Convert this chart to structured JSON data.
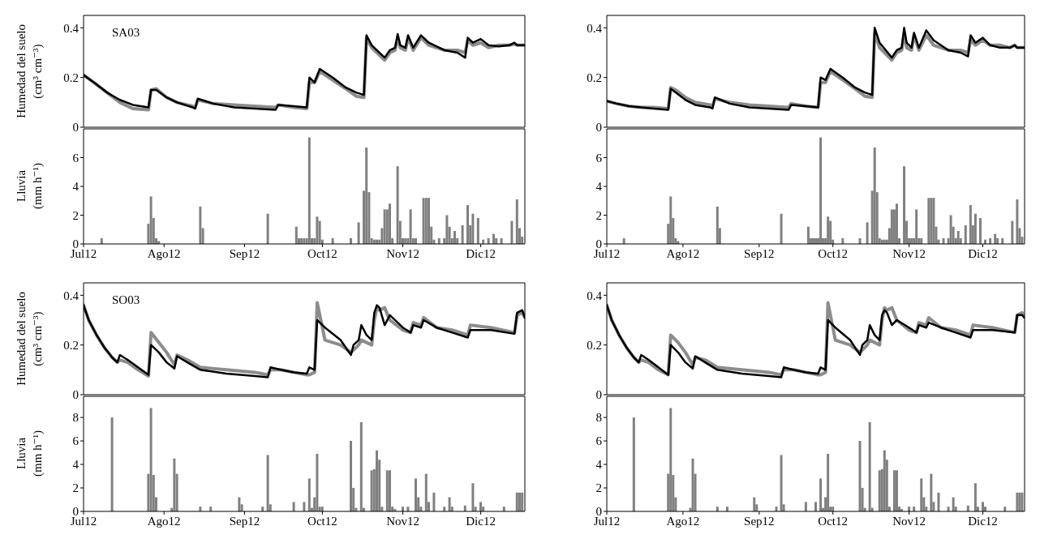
{
  "chart_data": [
    {
      "type": "line",
      "ylabel": "Humedad del suelo (cm³ cm⁻³)",
      "annotations": [
        "SA03"
      ],
      "tick_labels": "y",
      "xlim": [
        "2012-07-01",
        "2012-12-18"
      ],
      "xticks": [
        {
          "value": "2012-07-01",
          "label": null
        },
        {
          "value": "2012-08-01",
          "label": null
        },
        {
          "value": "2012-09-01",
          "label": null
        },
        {
          "value": "2012-10-01",
          "label": null
        },
        {
          "value": "2012-11-01",
          "label": null
        },
        {
          "value": "2012-12-01",
          "label": null
        }
      ],
      "ylim": [
        0,
        0.45
      ],
      "yticks": [
        0,
        0.2,
        0.4
      ],
      "x": [
        "2012-07-01",
        "2012-07-05",
        "2012-07-10",
        "2012-07-15",
        "2012-07-20",
        "2012-07-26",
        "2012-07-27",
        "2012-07-29",
        "2012-08-02",
        "2012-08-06",
        "2012-08-12",
        "2012-08-13",
        "2012-08-14",
        "2012-08-20",
        "2012-08-28",
        "2012-09-05",
        "2012-09-13",
        "2012-09-14",
        "2012-09-20",
        "2012-09-25",
        "2012-09-26",
        "2012-09-28",
        "2012-09-30",
        "2012-10-05",
        "2012-10-10",
        "2012-10-14",
        "2012-10-17",
        "2012-10-18",
        "2012-10-20",
        "2012-10-25",
        "2012-10-27",
        "2012-10-29",
        "2012-10-30",
        "2012-10-31",
        "2012-11-02",
        "2012-11-03",
        "2012-11-05",
        "2012-11-08",
        "2012-11-11",
        "2012-11-17",
        "2012-11-22",
        "2012-11-25",
        "2012-11-26",
        "2012-11-28",
        "2012-12-01",
        "2012-12-04",
        "2012-12-08",
        "2012-12-12",
        "2012-12-14",
        "2012-12-15",
        "2012-12-18"
      ],
      "series": [
        {
          "color": "#8c8c8c",
          "values": [
            0.21,
            0.18,
            0.14,
            0.1,
            0.075,
            0.07,
            0.15,
            0.155,
            0.12,
            0.1,
            0.085,
            0.08,
            0.11,
            0.095,
            0.09,
            0.085,
            0.08,
            0.09,
            0.08,
            0.075,
            0.18,
            0.18,
            0.225,
            0.19,
            0.155,
            0.125,
            0.12,
            0.36,
            0.32,
            0.27,
            0.3,
            0.31,
            0.36,
            0.32,
            0.31,
            0.36,
            0.31,
            0.36,
            0.33,
            0.31,
            0.31,
            0.3,
            0.35,
            0.33,
            0.34,
            0.32,
            0.33,
            0.33,
            0.335,
            0.33,
            0.33
          ]
        },
        {
          "color": "#000000",
          "values": [
            0.21,
            0.18,
            0.14,
            0.11,
            0.09,
            0.08,
            0.15,
            0.15,
            0.12,
            0.1,
            0.08,
            0.075,
            0.115,
            0.095,
            0.08,
            0.075,
            0.07,
            0.09,
            0.085,
            0.08,
            0.2,
            0.18,
            0.235,
            0.2,
            0.16,
            0.14,
            0.13,
            0.37,
            0.33,
            0.28,
            0.31,
            0.32,
            0.375,
            0.33,
            0.32,
            0.37,
            0.32,
            0.37,
            0.34,
            0.31,
            0.3,
            0.28,
            0.36,
            0.34,
            0.355,
            0.33,
            0.325,
            0.33,
            0.34,
            0.33,
            0.33
          ]
        }
      ]
    },
    {
      "type": "line",
      "tick_labels": "y",
      "xlim": [
        "2012-07-01",
        "2012-12-18"
      ],
      "xticks": [
        {
          "value": "2012-07-01",
          "label": null
        },
        {
          "value": "2012-08-01",
          "label": null
        },
        {
          "value": "2012-09-01",
          "label": null
        },
        {
          "value": "2012-10-01",
          "label": null
        },
        {
          "value": "2012-11-01",
          "label": null
        },
        {
          "value": "2012-12-01",
          "label": null
        }
      ],
      "ylim": [
        0,
        0.45
      ],
      "yticks": [
        0,
        0.2,
        0.4
      ],
      "x": [
        "2012-07-01",
        "2012-07-05",
        "2012-07-10",
        "2012-07-15",
        "2012-07-20",
        "2012-07-26",
        "2012-07-27",
        "2012-07-29",
        "2012-08-02",
        "2012-08-06",
        "2012-08-12",
        "2012-08-13",
        "2012-08-14",
        "2012-08-20",
        "2012-08-28",
        "2012-09-05",
        "2012-09-13",
        "2012-09-14",
        "2012-09-20",
        "2012-09-25",
        "2012-09-26",
        "2012-09-28",
        "2012-09-30",
        "2012-10-05",
        "2012-10-10",
        "2012-10-14",
        "2012-10-17",
        "2012-10-18",
        "2012-10-20",
        "2012-10-25",
        "2012-10-27",
        "2012-10-29",
        "2012-10-30",
        "2012-10-31",
        "2012-11-02",
        "2012-11-03",
        "2012-11-05",
        "2012-11-08",
        "2012-11-11",
        "2012-11-17",
        "2012-11-22",
        "2012-11-25",
        "2012-11-26",
        "2012-11-28",
        "2012-12-01",
        "2012-12-04",
        "2012-12-08",
        "2012-12-12",
        "2012-12-14",
        "2012-12-15",
        "2012-12-18"
      ],
      "series": [
        {
          "color": "#8c8c8c",
          "values": [
            0.105,
            0.095,
            0.085,
            0.08,
            0.08,
            0.075,
            0.16,
            0.15,
            0.12,
            0.1,
            0.09,
            0.085,
            0.115,
            0.1,
            0.09,
            0.085,
            0.08,
            0.095,
            0.085,
            0.08,
            0.18,
            0.18,
            0.225,
            0.19,
            0.155,
            0.125,
            0.12,
            0.38,
            0.32,
            0.27,
            0.3,
            0.31,
            0.38,
            0.32,
            0.31,
            0.37,
            0.31,
            0.37,
            0.33,
            0.31,
            0.31,
            0.3,
            0.35,
            0.33,
            0.35,
            0.33,
            0.33,
            0.32,
            0.33,
            0.32,
            0.32
          ]
        },
        {
          "color": "#000000",
          "values": [
            0.105,
            0.095,
            0.085,
            0.08,
            0.075,
            0.07,
            0.155,
            0.14,
            0.11,
            0.09,
            0.08,
            0.075,
            0.12,
            0.095,
            0.08,
            0.075,
            0.07,
            0.09,
            0.085,
            0.08,
            0.2,
            0.19,
            0.235,
            0.2,
            0.16,
            0.14,
            0.13,
            0.4,
            0.34,
            0.28,
            0.31,
            0.32,
            0.4,
            0.34,
            0.32,
            0.38,
            0.32,
            0.39,
            0.35,
            0.31,
            0.3,
            0.285,
            0.37,
            0.34,
            0.36,
            0.33,
            0.32,
            0.32,
            0.33,
            0.32,
            0.32
          ]
        }
      ]
    },
    {
      "type": "bar",
      "ylabel": "Lluvia (mm h⁻¹)",
      "xlim": [
        "2012-07-01",
        "2012-12-18"
      ],
      "xticks": [
        {
          "value": "2012-07-01",
          "label": "Jul12"
        },
        {
          "value": "2012-08-01",
          "label": "Ago12"
        },
        {
          "value": "2012-09-01",
          "label": "Sep12"
        },
        {
          "value": "2012-10-01",
          "label": "Oct12"
        },
        {
          "value": "2012-11-01",
          "label": "Nov12"
        },
        {
          "value": "2012-12-01",
          "label": "Dic12"
        }
      ],
      "ylim": [
        0,
        8
      ],
      "yticks": [
        0,
        2,
        4,
        6
      ],
      "color": "#808080",
      "x": [
        "2012-07-08",
        "2012-07-26",
        "2012-07-27",
        "2012-07-28",
        "2012-07-29",
        "2012-07-30",
        "2012-08-15",
        "2012-08-16",
        "2012-09-10",
        "2012-09-21",
        "2012-09-22",
        "2012-09-23",
        "2012-09-24",
        "2012-09-25",
        "2012-09-26",
        "2012-09-27",
        "2012-09-28",
        "2012-09-29",
        "2012-09-30",
        "2012-10-01",
        "2012-10-05",
        "2012-10-12",
        "2012-10-15",
        "2012-10-17",
        "2012-10-18",
        "2012-10-19",
        "2012-10-20",
        "2012-10-21",
        "2012-10-22",
        "2012-10-23",
        "2012-10-24",
        "2012-10-25",
        "2012-10-26",
        "2012-10-27",
        "2012-10-28",
        "2012-10-30",
        "2012-10-31",
        "2012-11-01",
        "2012-11-02",
        "2012-11-03",
        "2012-11-04",
        "2012-11-05",
        "2012-11-06",
        "2012-11-09",
        "2012-11-10",
        "2012-11-11",
        "2012-11-12",
        "2012-11-13",
        "2012-11-15",
        "2012-11-17",
        "2012-11-18",
        "2012-11-19",
        "2012-11-20",
        "2012-11-21",
        "2012-11-22",
        "2012-11-24",
        "2012-11-26",
        "2012-11-27",
        "2012-11-28",
        "2012-11-30",
        "2012-12-02",
        "2012-12-04",
        "2012-12-06",
        "2012-12-07",
        "2012-12-09",
        "2012-12-13",
        "2012-12-15",
        "2012-12-16",
        "2012-12-17"
      ],
      "values": [
        0.4,
        1.4,
        3.3,
        1.8,
        0.4,
        0.2,
        2.6,
        1.1,
        2.1,
        1.2,
        0.4,
        0.4,
        0.4,
        0.4,
        7.4,
        0.4,
        0.4,
        1.9,
        1.6,
        0.3,
        0.4,
        0.4,
        1.5,
        3.7,
        6.7,
        3.6,
        0.4,
        0.3,
        0.3,
        0.3,
        1.1,
        2.4,
        2.4,
        2.8,
        0.4,
        5.4,
        1.6,
        0.4,
        0.4,
        0.4,
        2.4,
        0.4,
        0.4,
        3.2,
        3.2,
        3.2,
        1.2,
        0.3,
        0.4,
        0.4,
        2.0,
        1.2,
        0.4,
        0.9,
        0.4,
        1.3,
        2.7,
        1.3,
        2.1,
        1.8,
        0.3,
        0.4,
        0.7,
        0.4,
        0.4,
        1.6,
        3.1,
        1.1,
        0.5
      ]
    },
    {
      "type": "bar",
      "xlim": [
        "2012-07-01",
        "2012-12-18"
      ],
      "xticks": [
        {
          "value": "2012-07-01",
          "label": "Jul12"
        },
        {
          "value": "2012-08-01",
          "label": "Ago12"
        },
        {
          "value": "2012-09-01",
          "label": "Sep12"
        },
        {
          "value": "2012-10-01",
          "label": "Oct12"
        },
        {
          "value": "2012-11-01",
          "label": "Nov12"
        },
        {
          "value": "2012-12-01",
          "label": "Dic12"
        }
      ],
      "ylim": [
        0,
        8
      ],
      "yticks": [
        0,
        2,
        4,
        6
      ],
      "color": "#808080",
      "x": [
        "2012-07-08",
        "2012-07-26",
        "2012-07-27",
        "2012-07-28",
        "2012-07-29",
        "2012-07-30",
        "2012-08-15",
        "2012-08-16",
        "2012-09-10",
        "2012-09-21",
        "2012-09-22",
        "2012-09-23",
        "2012-09-24",
        "2012-09-25",
        "2012-09-26",
        "2012-09-27",
        "2012-09-28",
        "2012-09-29",
        "2012-09-30",
        "2012-10-01",
        "2012-10-05",
        "2012-10-12",
        "2012-10-15",
        "2012-10-17",
        "2012-10-18",
        "2012-10-19",
        "2012-10-20",
        "2012-10-21",
        "2012-10-22",
        "2012-10-23",
        "2012-10-24",
        "2012-10-25",
        "2012-10-26",
        "2012-10-27",
        "2012-10-28",
        "2012-10-30",
        "2012-10-31",
        "2012-11-01",
        "2012-11-02",
        "2012-11-03",
        "2012-11-04",
        "2012-11-05",
        "2012-11-06",
        "2012-11-09",
        "2012-11-10",
        "2012-11-11",
        "2012-11-12",
        "2012-11-13",
        "2012-11-15",
        "2012-11-17",
        "2012-11-18",
        "2012-11-19",
        "2012-11-20",
        "2012-11-21",
        "2012-11-22",
        "2012-11-24",
        "2012-11-26",
        "2012-11-27",
        "2012-11-28",
        "2012-11-30",
        "2012-12-02",
        "2012-12-04",
        "2012-12-06",
        "2012-12-07",
        "2012-12-09",
        "2012-12-13",
        "2012-12-15",
        "2012-12-16",
        "2012-12-17"
      ],
      "values": [
        0.4,
        1.4,
        3.3,
        1.8,
        0.4,
        0.2,
        2.6,
        1.1,
        2.1,
        1.2,
        0.4,
        0.4,
        0.4,
        0.4,
        7.4,
        0.4,
        0.4,
        1.9,
        1.6,
        0.3,
        0.4,
        0.4,
        1.5,
        3.7,
        6.7,
        3.6,
        0.4,
        0.3,
        0.3,
        0.3,
        1.1,
        2.4,
        2.4,
        2.8,
        0.4,
        5.4,
        1.6,
        0.4,
        0.4,
        0.4,
        2.4,
        0.4,
        0.4,
        3.2,
        3.2,
        3.2,
        1.2,
        0.3,
        0.4,
        0.4,
        2.0,
        1.2,
        0.4,
        0.9,
        0.4,
        1.3,
        2.7,
        1.3,
        2.1,
        1.8,
        0.3,
        0.4,
        0.7,
        0.4,
        0.4,
        1.6,
        3.1,
        1.1,
        0.5
      ]
    },
    {
      "type": "line",
      "ylabel": "Humedad del suelo (cm³ cm⁻³)",
      "annotations": [
        "SO03"
      ],
      "tick_labels": "y",
      "xlim": [
        "2012-07-01",
        "2012-12-18"
      ],
      "xticks": [
        {
          "value": "2012-07-01",
          "label": null
        },
        {
          "value": "2012-08-01",
          "label": null
        },
        {
          "value": "2012-09-01",
          "label": null
        },
        {
          "value": "2012-10-01",
          "label": null
        },
        {
          "value": "2012-11-01",
          "label": null
        },
        {
          "value": "2012-12-01",
          "label": null
        }
      ],
      "ylim": [
        0,
        0.45
      ],
      "yticks": [
        0,
        0.2,
        0.4
      ],
      "x": [
        "2012-07-01",
        "2012-07-03",
        "2012-07-06",
        "2012-07-09",
        "2012-07-12",
        "2012-07-14",
        "2012-07-15",
        "2012-07-18",
        "2012-07-22",
        "2012-07-26",
        "2012-07-27",
        "2012-07-30",
        "2012-08-02",
        "2012-08-05",
        "2012-08-06",
        "2012-08-10",
        "2012-08-15",
        "2012-08-25",
        "2012-09-05",
        "2012-09-10",
        "2012-09-11",
        "2012-09-15",
        "2012-09-20",
        "2012-09-25",
        "2012-09-26",
        "2012-09-28",
        "2012-09-29",
        "2012-10-02",
        "2012-10-08",
        "2012-10-12",
        "2012-10-13",
        "2012-10-15",
        "2012-10-16",
        "2012-10-18",
        "2012-10-20",
        "2012-10-21",
        "2012-10-22",
        "2012-10-23",
        "2012-10-25",
        "2012-10-27",
        "2012-11-01",
        "2012-11-04",
        "2012-11-05",
        "2012-11-08",
        "2012-11-09",
        "2012-11-14",
        "2012-11-20",
        "2012-11-26",
        "2012-11-27",
        "2012-12-05",
        "2012-12-14",
        "2012-12-15",
        "2012-12-17",
        "2012-12-18"
      ],
      "series": [
        {
          "color": "#8c8c8c",
          "values": [
            0.36,
            0.3,
            0.24,
            0.19,
            0.15,
            0.13,
            0.14,
            0.13,
            0.1,
            0.075,
            0.25,
            0.21,
            0.17,
            0.12,
            0.16,
            0.14,
            0.11,
            0.1,
            0.09,
            0.08,
            0.1,
            0.1,
            0.09,
            0.08,
            0.08,
            0.09,
            0.37,
            0.22,
            0.2,
            0.17,
            0.18,
            0.2,
            0.22,
            0.21,
            0.2,
            0.3,
            0.35,
            0.34,
            0.35,
            0.3,
            0.26,
            0.25,
            0.29,
            0.28,
            0.31,
            0.27,
            0.26,
            0.24,
            0.28,
            0.27,
            0.25,
            0.32,
            0.33,
            0.31
          ]
        },
        {
          "color": "#000000",
          "values": [
            0.36,
            0.3,
            0.24,
            0.19,
            0.15,
            0.13,
            0.16,
            0.14,
            0.11,
            0.08,
            0.2,
            0.17,
            0.13,
            0.105,
            0.155,
            0.13,
            0.1,
            0.085,
            0.075,
            0.07,
            0.11,
            0.1,
            0.09,
            0.085,
            0.11,
            0.1,
            0.3,
            0.27,
            0.22,
            0.16,
            0.2,
            0.22,
            0.28,
            0.24,
            0.22,
            0.33,
            0.36,
            0.35,
            0.28,
            0.32,
            0.27,
            0.25,
            0.28,
            0.27,
            0.3,
            0.27,
            0.25,
            0.23,
            0.26,
            0.26,
            0.245,
            0.33,
            0.34,
            0.31
          ]
        }
      ]
    },
    {
      "type": "line",
      "tick_labels": "y",
      "xlim": [
        "2012-07-01",
        "2012-12-18"
      ],
      "xticks": [
        {
          "value": "2012-07-01",
          "label": null
        },
        {
          "value": "2012-08-01",
          "label": null
        },
        {
          "value": "2012-09-01",
          "label": null
        },
        {
          "value": "2012-10-01",
          "label": null
        },
        {
          "value": "2012-11-01",
          "label": null
        },
        {
          "value": "2012-12-01",
          "label": null
        }
      ],
      "ylim": [
        0,
        0.45
      ],
      "yticks": [
        0,
        0.2,
        0.4
      ],
      "x": [
        "2012-07-01",
        "2012-07-03",
        "2012-07-06",
        "2012-07-09",
        "2012-07-12",
        "2012-07-14",
        "2012-07-15",
        "2012-07-18",
        "2012-07-22",
        "2012-07-26",
        "2012-07-27",
        "2012-07-30",
        "2012-08-02",
        "2012-08-05",
        "2012-08-06",
        "2012-08-10",
        "2012-08-15",
        "2012-08-25",
        "2012-09-05",
        "2012-09-10",
        "2012-09-11",
        "2012-09-15",
        "2012-09-20",
        "2012-09-25",
        "2012-09-26",
        "2012-09-28",
        "2012-09-29",
        "2012-10-02",
        "2012-10-08",
        "2012-10-12",
        "2012-10-13",
        "2012-10-15",
        "2012-10-16",
        "2012-10-18",
        "2012-10-20",
        "2012-10-21",
        "2012-10-22",
        "2012-10-23",
        "2012-10-25",
        "2012-10-27",
        "2012-11-01",
        "2012-11-04",
        "2012-11-05",
        "2012-11-08",
        "2012-11-09",
        "2012-11-14",
        "2012-11-20",
        "2012-11-26",
        "2012-11-27",
        "2012-12-05",
        "2012-12-14",
        "2012-12-15",
        "2012-12-17",
        "2012-12-18"
      ],
      "series": [
        {
          "color": "#8c8c8c",
          "values": [
            0.36,
            0.3,
            0.24,
            0.19,
            0.15,
            0.13,
            0.14,
            0.13,
            0.1,
            0.08,
            0.24,
            0.21,
            0.17,
            0.12,
            0.15,
            0.14,
            0.11,
            0.1,
            0.09,
            0.08,
            0.1,
            0.1,
            0.09,
            0.08,
            0.08,
            0.09,
            0.37,
            0.22,
            0.2,
            0.17,
            0.18,
            0.2,
            0.22,
            0.21,
            0.2,
            0.3,
            0.35,
            0.34,
            0.35,
            0.3,
            0.26,
            0.25,
            0.29,
            0.28,
            0.31,
            0.27,
            0.26,
            0.24,
            0.28,
            0.27,
            0.25,
            0.32,
            0.33,
            0.31
          ]
        },
        {
          "color": "#000000",
          "values": [
            0.36,
            0.3,
            0.24,
            0.19,
            0.15,
            0.13,
            0.16,
            0.14,
            0.11,
            0.08,
            0.2,
            0.17,
            0.13,
            0.105,
            0.155,
            0.13,
            0.1,
            0.085,
            0.075,
            0.07,
            0.11,
            0.1,
            0.09,
            0.085,
            0.11,
            0.1,
            0.3,
            0.27,
            0.22,
            0.16,
            0.2,
            0.22,
            0.28,
            0.24,
            0.22,
            0.32,
            0.34,
            0.33,
            0.28,
            0.3,
            0.27,
            0.25,
            0.28,
            0.27,
            0.29,
            0.27,
            0.25,
            0.23,
            0.26,
            0.26,
            0.25,
            0.32,
            0.32,
            0.31
          ]
        }
      ]
    },
    {
      "type": "bar",
      "ylabel": "Lluvia (mm h⁻¹)",
      "xlim": [
        "2012-07-01",
        "2012-12-18"
      ],
      "xticks": [
        {
          "value": "2012-07-01",
          "label": "Jul12"
        },
        {
          "value": "2012-08-01",
          "label": "Ago12"
        },
        {
          "value": "2012-09-01",
          "label": "Sep12"
        },
        {
          "value": "2012-10-01",
          "label": "Oct12"
        },
        {
          "value": "2012-11-01",
          "label": "Nov12"
        },
        {
          "value": "2012-12-01",
          "label": "Dic12"
        }
      ],
      "ylim": [
        0,
        9.8
      ],
      "yticks": [
        0,
        2,
        4,
        6,
        8
      ],
      "color": "#808080",
      "x": [
        "2012-07-12",
        "2012-07-26",
        "2012-07-27",
        "2012-07-28",
        "2012-07-29",
        "2012-08-04",
        "2012-08-05",
        "2012-08-06",
        "2012-08-15",
        "2012-08-19",
        "2012-08-30",
        "2012-08-31",
        "2012-09-08",
        "2012-09-10",
        "2012-09-11",
        "2012-09-20",
        "2012-09-24",
        "2012-09-26",
        "2012-09-27",
        "2012-09-28",
        "2012-09-29",
        "2012-09-30",
        "2012-10-01",
        "2012-10-12",
        "2012-10-13",
        "2012-10-14",
        "2012-10-16",
        "2012-10-17",
        "2012-10-20",
        "2012-10-21",
        "2012-10-22",
        "2012-10-23",
        "2012-10-24",
        "2012-10-26",
        "2012-10-27",
        "2012-10-28",
        "2012-10-29",
        "2012-11-01",
        "2012-11-03",
        "2012-11-06",
        "2012-11-07",
        "2012-11-08",
        "2012-11-10",
        "2012-11-11",
        "2012-11-13",
        "2012-11-17",
        "2012-11-19",
        "2012-11-20",
        "2012-11-25",
        "2012-11-28",
        "2012-11-29",
        "2012-12-01",
        "2012-12-02",
        "2012-12-10",
        "2012-12-15",
        "2012-12-16",
        "2012-12-17"
      ],
      "values": [
        8.0,
        3.2,
        8.8,
        3.1,
        1.2,
        0.3,
        4.5,
        3.2,
        0.4,
        0.4,
        1.2,
        0.6,
        0.4,
        4.8,
        0.6,
        0.8,
        0.8,
        2.8,
        0.3,
        1.2,
        4.9,
        0.4,
        0.4,
        6.0,
        2.0,
        0.3,
        7.6,
        0.3,
        3.5,
        3.6,
        5.2,
        4.4,
        0.4,
        3.5,
        3.5,
        0.4,
        0.2,
        0.4,
        0.4,
        2.8,
        1.2,
        0.4,
        3.2,
        0.8,
        1.6,
        0.4,
        1.2,
        0.4,
        0.5,
        2.4,
        0.4,
        0.8,
        0.4,
        0.4,
        1.6,
        1.6,
        1.6
      ]
    },
    {
      "type": "bar",
      "xlim": [
        "2012-07-01",
        "2012-12-18"
      ],
      "xticks": [
        {
          "value": "2012-07-01",
          "label": "Jul12"
        },
        {
          "value": "2012-08-01",
          "label": "Ago12"
        },
        {
          "value": "2012-09-01",
          "label": "Sep12"
        },
        {
          "value": "2012-10-01",
          "label": "Oct12"
        },
        {
          "value": "2012-11-01",
          "label": "Nov12"
        },
        {
          "value": "2012-12-01",
          "label": "Dic12"
        }
      ],
      "ylim": [
        0,
        9.8
      ],
      "yticks": [
        0,
        2,
        4,
        6,
        8
      ],
      "color": "#808080",
      "x": [
        "2012-07-12",
        "2012-07-26",
        "2012-07-27",
        "2012-07-28",
        "2012-07-29",
        "2012-08-04",
        "2012-08-05",
        "2012-08-06",
        "2012-08-15",
        "2012-08-19",
        "2012-08-30",
        "2012-08-31",
        "2012-09-08",
        "2012-09-10",
        "2012-09-11",
        "2012-09-20",
        "2012-09-24",
        "2012-09-26",
        "2012-09-27",
        "2012-09-28",
        "2012-09-29",
        "2012-09-30",
        "2012-10-01",
        "2012-10-12",
        "2012-10-13",
        "2012-10-14",
        "2012-10-16",
        "2012-10-17",
        "2012-10-20",
        "2012-10-21",
        "2012-10-22",
        "2012-10-23",
        "2012-10-24",
        "2012-10-26",
        "2012-10-27",
        "2012-10-28",
        "2012-10-29",
        "2012-11-01",
        "2012-11-03",
        "2012-11-06",
        "2012-11-07",
        "2012-11-08",
        "2012-11-10",
        "2012-11-11",
        "2012-11-13",
        "2012-11-17",
        "2012-11-19",
        "2012-11-20",
        "2012-11-25",
        "2012-11-28",
        "2012-11-29",
        "2012-12-01",
        "2012-12-02",
        "2012-12-10",
        "2012-12-15",
        "2012-12-16",
        "2012-12-17"
      ],
      "values": [
        8.0,
        3.2,
        8.8,
        3.1,
        1.2,
        0.3,
        4.5,
        3.2,
        0.4,
        0.4,
        1.2,
        0.6,
        0.4,
        4.8,
        0.6,
        0.8,
        0.8,
        2.8,
        0.3,
        1.2,
        4.9,
        0.4,
        0.4,
        6.0,
        2.0,
        0.3,
        7.6,
        0.3,
        3.5,
        3.6,
        5.2,
        4.4,
        0.4,
        3.5,
        3.5,
        0.4,
        0.2,
        0.4,
        0.4,
        2.8,
        1.2,
        0.4,
        3.2,
        0.8,
        1.6,
        0.4,
        1.2,
        0.4,
        0.5,
        2.4,
        0.4,
        0.8,
        0.4,
        0.4,
        1.6,
        1.6,
        1.6
      ]
    }
  ]
}
